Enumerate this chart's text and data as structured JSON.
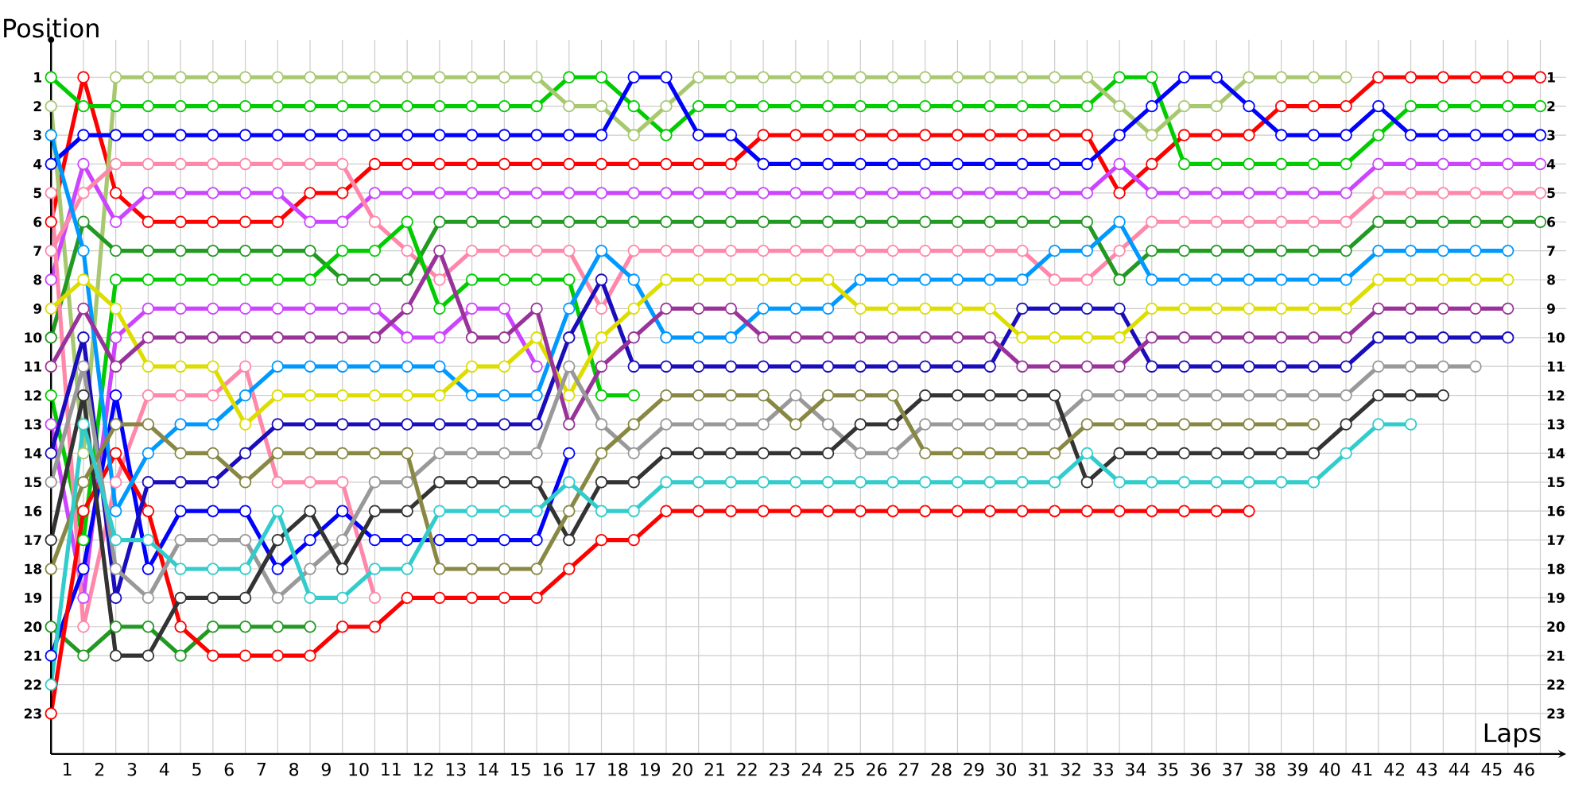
{
  "chart_data": {
    "type": "line",
    "xlabel": "Laps",
    "ylabel": "Position",
    "x": [
      0,
      1,
      2,
      3,
      4,
      5,
      6,
      7,
      8,
      9,
      10,
      11,
      12,
      13,
      14,
      15,
      16,
      17,
      18,
      19,
      20,
      21,
      22,
      23,
      24,
      25,
      26,
      27,
      28,
      29,
      30,
      31,
      32,
      33,
      34,
      35,
      36,
      37,
      38,
      39,
      40,
      41,
      42,
      43,
      44,
      45,
      46
    ],
    "xlim": [
      0,
      46.8
    ],
    "ylim": [
      24.4,
      -0.3
    ],
    "xticks": [
      {
        "value": 0.5,
        "label": "1"
      },
      {
        "value": 1.5,
        "label": "2"
      },
      {
        "value": 2.5,
        "label": "3"
      },
      {
        "value": 3.5,
        "label": "4"
      },
      {
        "value": 4.5,
        "label": "5"
      },
      {
        "value": 5.5,
        "label": "6"
      },
      {
        "value": 6.5,
        "label": "7"
      },
      {
        "value": 7.5,
        "label": "8"
      },
      {
        "value": 8.5,
        "label": "9"
      },
      {
        "value": 9.5,
        "label": "10"
      },
      {
        "value": 10.5,
        "label": "11"
      },
      {
        "value": 11.5,
        "label": "12"
      },
      {
        "value": 12.5,
        "label": "13"
      },
      {
        "value": 13.5,
        "label": "14"
      },
      {
        "value": 14.5,
        "label": "15"
      },
      {
        "value": 15.5,
        "label": "16"
      },
      {
        "value": 16.5,
        "label": "17"
      },
      {
        "value": 17.5,
        "label": "18"
      },
      {
        "value": 18.5,
        "label": "19"
      },
      {
        "value": 19.5,
        "label": "20"
      },
      {
        "value": 20.5,
        "label": "21"
      },
      {
        "value": 21.5,
        "label": "22"
      },
      {
        "value": 22.5,
        "label": "23"
      },
      {
        "value": 23.5,
        "label": "24"
      },
      {
        "value": 24.5,
        "label": "25"
      },
      {
        "value": 25.5,
        "label": "26"
      },
      {
        "value": 26.5,
        "label": "27"
      },
      {
        "value": 27.5,
        "label": "28"
      },
      {
        "value": 28.5,
        "label": "29"
      },
      {
        "value": 29.5,
        "label": "30"
      },
      {
        "value": 30.5,
        "label": "31"
      },
      {
        "value": 31.5,
        "label": "32"
      },
      {
        "value": 32.5,
        "label": "33"
      },
      {
        "value": 33.5,
        "label": "34"
      },
      {
        "value": 34.5,
        "label": "35"
      },
      {
        "value": 35.5,
        "label": "36"
      },
      {
        "value": 36.5,
        "label": "37"
      },
      {
        "value": 37.5,
        "label": "38"
      },
      {
        "value": 38.5,
        "label": "39"
      },
      {
        "value": 39.5,
        "label": "40"
      },
      {
        "value": 40.5,
        "label": "41"
      },
      {
        "value": 41.5,
        "label": "42"
      },
      {
        "value": 42.5,
        "label": "43"
      },
      {
        "value": 43.5,
        "label": "44"
      },
      {
        "value": 44.5,
        "label": "45"
      },
      {
        "value": 45.5,
        "label": "46"
      }
    ],
    "yticks": [
      1,
      2,
      3,
      4,
      5,
      6,
      7,
      8,
      9,
      10,
      11,
      12,
      13,
      14,
      15,
      16,
      17,
      18,
      19,
      20,
      21,
      22,
      23
    ],
    "y2lim": [
      24.4,
      -0.3
    ],
    "y2ticks": [
      1,
      2,
      3,
      4,
      5,
      6,
      7,
      8,
      9,
      10,
      11,
      12,
      13,
      14,
      15,
      16,
      17,
      18,
      19,
      20,
      21,
      22,
      23
    ],
    "grid": true,
    "marker": "circle",
    "line_style": "solid",
    "series": [
      {
        "color": "#ff0000",
        "values": [
          6,
          1,
          5,
          6,
          6,
          6,
          6,
          6,
          5,
          5,
          4,
          4,
          4,
          4,
          4,
          4,
          4,
          4,
          4,
          4,
          4,
          4,
          3,
          3,
          3,
          3,
          3,
          3,
          3,
          3,
          3,
          3,
          3,
          5,
          4,
          3,
          3,
          3,
          2,
          2,
          2,
          1,
          1,
          1,
          1,
          1,
          1
        ]
      },
      {
        "color": "#00cc00",
        "values": [
          1,
          2,
          2,
          2,
          2,
          2,
          2,
          2,
          2,
          2,
          2,
          2,
          2,
          2,
          2,
          2,
          1,
          1,
          2,
          3,
          2,
          2,
          2,
          2,
          2,
          2,
          2,
          2,
          2,
          2,
          2,
          2,
          2,
          1,
          1,
          4,
          4,
          4,
          4,
          4,
          4,
          3,
          2,
          2,
          2,
          2,
          2
        ]
      },
      {
        "color": "#a8c870",
        "values": [
          2,
          14,
          1,
          1,
          1,
          1,
          1,
          1,
          1,
          1,
          1,
          1,
          1,
          1,
          1,
          1,
          2,
          2,
          3,
          2,
          1,
          1,
          1,
          1,
          1,
          1,
          1,
          1,
          1,
          1,
          1,
          1,
          1,
          2,
          3,
          2,
          2,
          1,
          1,
          1,
          1,
          null,
          null,
          null,
          null,
          null,
          null
        ]
      },
      {
        "color": "#0000ff",
        "values": [
          4,
          3,
          3,
          3,
          3,
          3,
          3,
          3,
          3,
          3,
          3,
          3,
          3,
          3,
          3,
          3,
          3,
          3,
          1,
          1,
          3,
          3,
          4,
          4,
          4,
          4,
          4,
          4,
          4,
          4,
          4,
          4,
          4,
          3,
          2,
          1,
          1,
          2,
          3,
          3,
          3,
          2,
          3,
          3,
          3,
          3,
          3
        ]
      },
      {
        "color": "#cc44ff",
        "values": [
          8,
          4,
          6,
          5,
          5,
          5,
          5,
          5,
          6,
          6,
          5,
          5,
          5,
          5,
          5,
          5,
          5,
          5,
          5,
          5,
          5,
          5,
          5,
          5,
          5,
          5,
          5,
          5,
          5,
          5,
          5,
          5,
          5,
          4,
          5,
          5,
          5,
          5,
          5,
          5,
          5,
          4,
          4,
          4,
          4,
          4,
          4
        ]
      },
      {
        "color": "#ff88aa",
        "values": [
          7,
          5,
          4,
          4,
          4,
          4,
          4,
          4,
          4,
          4,
          6,
          7,
          8,
          7,
          7,
          7,
          7,
          9,
          7,
          7,
          7,
          7,
          7,
          7,
          7,
          7,
          7,
          7,
          7,
          7,
          7,
          8,
          8,
          7,
          6,
          6,
          6,
          6,
          6,
          6,
          6,
          5,
          5,
          5,
          5,
          5,
          5
        ]
      },
      {
        "color": "#229922",
        "values": [
          10,
          6,
          7,
          7,
          7,
          7,
          7,
          7,
          7,
          8,
          8,
          8,
          6,
          6,
          6,
          6,
          6,
          6,
          6,
          6,
          6,
          6,
          6,
          6,
          6,
          6,
          6,
          6,
          6,
          6,
          6,
          6,
          6,
          8,
          7,
          7,
          7,
          7,
          7,
          7,
          7,
          6,
          6,
          6,
          6,
          6,
          6
        ]
      },
      {
        "color": "#00cc00",
        "values": [
          12,
          17,
          8,
          8,
          8,
          8,
          8,
          8,
          8,
          7,
          7,
          6,
          9,
          8,
          8,
          8,
          8,
          12,
          12,
          null,
          null,
          null,
          null,
          null,
          null,
          null,
          null,
          null,
          null,
          null,
          null,
          null,
          null,
          null,
          null,
          null,
          null,
          null,
          null,
          null,
          null,
          null,
          null,
          null,
          null,
          null,
          null
        ]
      },
      {
        "color": "#cc44ff",
        "values": [
          13,
          19,
          10,
          9,
          9,
          9,
          9,
          9,
          9,
          9,
          9,
          10,
          10,
          9,
          9,
          11,
          null,
          null,
          null,
          null,
          null,
          null,
          null,
          null,
          null,
          null,
          null,
          null,
          null,
          null,
          null,
          null,
          null,
          null,
          null,
          null,
          null,
          null,
          null,
          null,
          null,
          null,
          null,
          null,
          null,
          null,
          null
        ]
      },
      {
        "color": "#ff88aa",
        "values": [
          5,
          20,
          15,
          12,
          12,
          12,
          11,
          15,
          15,
          15,
          19,
          null,
          null,
          null,
          null,
          null,
          null,
          null,
          null,
          null,
          null,
          null,
          null,
          null,
          null,
          null,
          null,
          null,
          null,
          null,
          null,
          null,
          null,
          null,
          null,
          null,
          null,
          null,
          null,
          null,
          null,
          null,
          null,
          null,
          null,
          null,
          null
        ]
      },
      {
        "color": "#229922",
        "values": [
          20,
          21,
          20,
          20,
          21,
          20,
          20,
          20,
          20,
          null,
          null,
          null,
          null,
          null,
          null,
          null,
          null,
          null,
          null,
          null,
          null,
          null,
          null,
          null,
          null,
          null,
          null,
          null,
          null,
          null,
          null,
          null,
          null,
          null,
          null,
          null,
          null,
          null,
          null,
          null,
          null,
          null,
          null,
          null,
          null,
          null,
          null
        ]
      },
      {
        "color": "#0000ff",
        "values": [
          21,
          18,
          12,
          18,
          16,
          16,
          16,
          18,
          17,
          16,
          17,
          17,
          17,
          17,
          17,
          17,
          14,
          null,
          null,
          null,
          null,
          null,
          null,
          null,
          null,
          null,
          null,
          null,
          null,
          null,
          null,
          null,
          null,
          null,
          null,
          null,
          null,
          null,
          null,
          null,
          null,
          null,
          null,
          null,
          null,
          null,
          null
        ]
      },
      {
        "color": "#ff0000",
        "values": [
          23,
          16,
          14,
          16,
          20,
          21,
          21,
          21,
          21,
          20,
          20,
          19,
          19,
          19,
          19,
          19,
          18,
          17,
          17,
          16,
          16,
          16,
          16,
          16,
          16,
          16,
          16,
          16,
          16,
          16,
          16,
          16,
          16,
          16,
          16,
          16,
          16,
          16,
          null,
          null,
          null,
          null,
          null,
          null,
          null,
          null,
          null
        ]
      },
      {
        "color": "#1a0dbb",
        "values": [
          14,
          10,
          19,
          15,
          15,
          15,
          14,
          13,
          13,
          13,
          13,
          13,
          13,
          13,
          13,
          13,
          10,
          8,
          11,
          11,
          11,
          11,
          11,
          11,
          11,
          11,
          11,
          11,
          11,
          11,
          9,
          9,
          9,
          9,
          11,
          11,
          11,
          11,
          11,
          11,
          11,
          10,
          10,
          10,
          10,
          10,
          null
        ]
      },
      {
        "color": "#0099ff",
        "values": [
          3,
          7,
          16,
          14,
          13,
          13,
          12,
          11,
          11,
          11,
          11,
          11,
          11,
          12,
          12,
          12,
          9,
          7,
          8,
          10,
          10,
          10,
          9,
          9,
          9,
          8,
          8,
          8,
          8,
          8,
          8,
          7,
          7,
          6,
          8,
          8,
          8,
          8,
          8,
          8,
          8,
          7,
          7,
          7,
          7,
          7,
          null
        ]
      },
      {
        "color": "#dddd00",
        "values": [
          9,
          8,
          9,
          11,
          11,
          11,
          13,
          12,
          12,
          12,
          12,
          12,
          12,
          11,
          11,
          10,
          12,
          10,
          9,
          8,
          8,
          8,
          8,
          8,
          8,
          9,
          9,
          9,
          9,
          9,
          10,
          10,
          10,
          10,
          9,
          9,
          9,
          9,
          9,
          9,
          9,
          8,
          8,
          8,
          8,
          8,
          null
        ]
      },
      {
        "color": "#993399",
        "values": [
          11,
          9,
          11,
          10,
          10,
          10,
          10,
          10,
          10,
          10,
          10,
          9,
          7,
          10,
          10,
          9,
          13,
          11,
          10,
          9,
          9,
          9,
          10,
          10,
          10,
          10,
          10,
          10,
          10,
          10,
          11,
          11,
          11,
          11,
          10,
          10,
          10,
          10,
          10,
          10,
          10,
          9,
          9,
          9,
          9,
          9,
          null
        ]
      },
      {
        "color": "#999999",
        "values": [
          15,
          11,
          18,
          19,
          17,
          17,
          17,
          19,
          18,
          17,
          15,
          15,
          14,
          14,
          14,
          14,
          11,
          13,
          14,
          13,
          13,
          13,
          13,
          12,
          13,
          14,
          14,
          13,
          13,
          13,
          13,
          13,
          12,
          12,
          12,
          12,
          12,
          12,
          12,
          12,
          12,
          11,
          11,
          11,
          11,
          null,
          null
        ]
      },
      {
        "color": "#333333",
        "values": [
          17,
          12,
          21,
          21,
          19,
          19,
          19,
          17,
          16,
          18,
          16,
          16,
          15,
          15,
          15,
          15,
          17,
          15,
          15,
          14,
          14,
          14,
          14,
          14,
          14,
          13,
          13,
          12,
          12,
          12,
          12,
          12,
          15,
          14,
          14,
          14,
          14,
          14,
          14,
          14,
          13,
          12,
          12,
          12,
          null,
          null,
          null
        ]
      },
      {
        "color": "#888844",
        "values": [
          18,
          15,
          13,
          13,
          14,
          14,
          15,
          14,
          14,
          14,
          14,
          14,
          18,
          18,
          18,
          18,
          16,
          14,
          13,
          12,
          12,
          12,
          12,
          13,
          12,
          12,
          12,
          14,
          14,
          14,
          14,
          14,
          13,
          13,
          13,
          13,
          13,
          13,
          13,
          13,
          null,
          null,
          null,
          null,
          null,
          null,
          null
        ]
      },
      {
        "color": "#33cccc",
        "values": [
          22,
          13,
          17,
          17,
          18,
          18,
          18,
          16,
          19,
          19,
          18,
          18,
          16,
          16,
          16,
          16,
          15,
          16,
          16,
          15,
          15,
          15,
          15,
          15,
          15,
          15,
          15,
          15,
          15,
          15,
          15,
          15,
          14,
          15,
          15,
          15,
          15,
          15,
          15,
          15,
          14,
          13,
          13,
          null,
          null,
          null,
          null
        ]
      }
    ]
  }
}
